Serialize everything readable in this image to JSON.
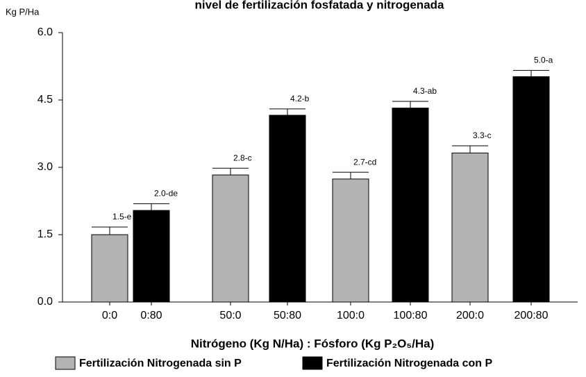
{
  "chart_data": {
    "type": "bar",
    "title": "nivel de fertilización fosfatada y nitrogenada",
    "y_label": "Kg P/Ha",
    "x_label": "Nitrógeno (Kg N/Ha) : Fósforo (Kg P₂O₅/Ha)",
    "categories": [
      "0:0",
      "0:80",
      "50:0",
      "50:80",
      "100:0",
      "100:80",
      "200:0",
      "200:80"
    ],
    "series": [
      {
        "name": "Fertilización Nitrogenada sin P",
        "color": "#b3b3b3",
        "values": [
          1.5,
          null,
          2.83,
          null,
          2.74,
          null,
          3.32,
          null
        ],
        "errors": [
          0.17,
          null,
          0.15,
          null,
          0.15,
          null,
          0.16,
          null
        ],
        "value_labels": [
          "1.5-e",
          null,
          "2.8-c",
          null,
          "2.7-cd",
          null,
          "3.3-c",
          null
        ]
      },
      {
        "name": "Fertilización Nitrogenada con P",
        "color": "#000000",
        "values": [
          null,
          2.04,
          null,
          4.16,
          null,
          4.32,
          null,
          5.02
        ],
        "errors": [
          null,
          0.15,
          null,
          0.14,
          null,
          0.15,
          null,
          0.14
        ],
        "value_labels": [
          null,
          "2.0-de",
          null,
          "4.2-b",
          null,
          "4.3-ab",
          null,
          "5.0-a"
        ]
      }
    ],
    "ylim": [
      0,
      6
    ],
    "yticks": [
      {
        "value": 0,
        "label": "0.0"
      },
      {
        "value": 1.5,
        "label": "1.5"
      },
      {
        "value": 3,
        "label": "3.0"
      },
      {
        "value": 4.5,
        "label": "4.5"
      },
      {
        "value": 6,
        "label": "6.0"
      }
    ]
  }
}
